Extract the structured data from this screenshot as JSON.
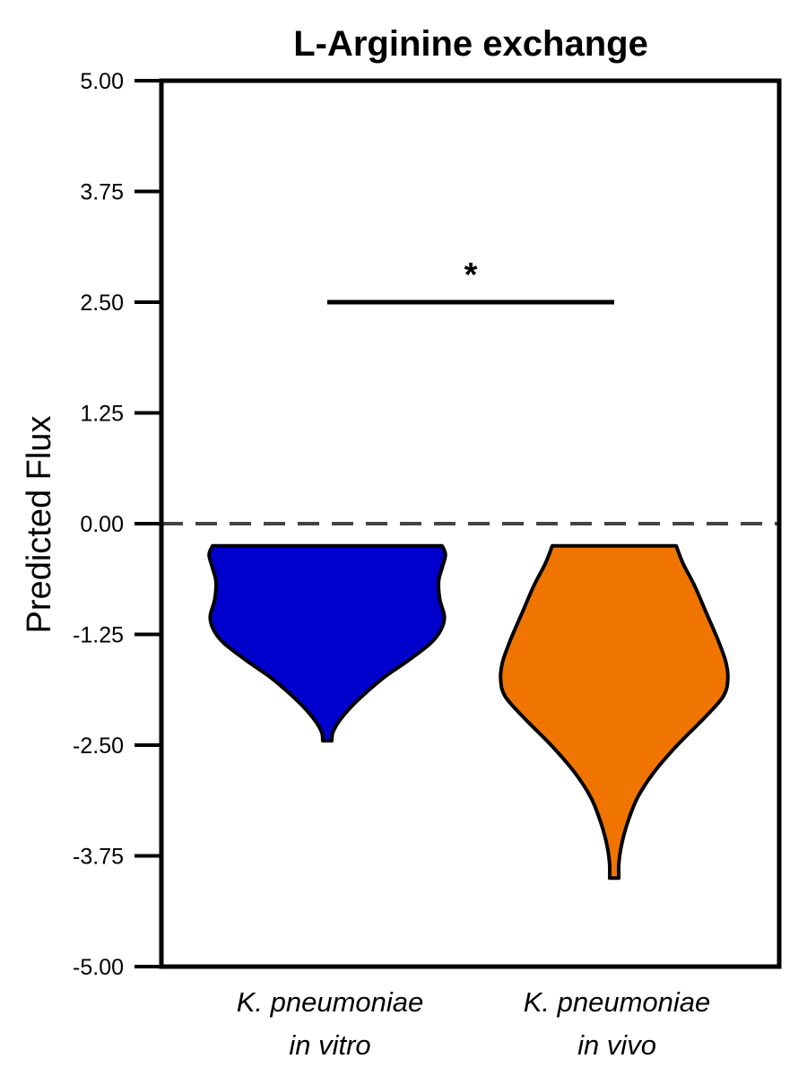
{
  "chart_data": {
    "type": "violin",
    "title": "L-Arginine exchange",
    "ylabel": "Predicted Flux",
    "ylim": [
      -5,
      5
    ],
    "yticks": [
      5,
      3.75,
      2.5,
      1.25,
      0,
      -1.25,
      -2.5,
      -3.75,
      -5
    ],
    "ytick_labels": [
      "5.00",
      "3.75",
      "2.50",
      "1.25",
      "0.00",
      "-1.25",
      "-2.50",
      "-3.75",
      "-5.00"
    ],
    "reference_line": {
      "y": 0,
      "style": "dashed",
      "color": "#444444"
    },
    "categories": [
      {
        "line1": "K. pneumoniae",
        "line2": "in vitro"
      },
      {
        "line1": "K. pneumoniae",
        "line2": "in vivo"
      }
    ],
    "series": [
      {
        "color": "#0000cc",
        "y_min": -2.45,
        "y_max": -0.25,
        "profile": [
          [
            -0.25,
            1.0
          ],
          [
            -0.35,
            1.03
          ],
          [
            -0.5,
            1.0
          ],
          [
            -0.65,
            0.97
          ],
          [
            -0.85,
            0.98
          ],
          [
            -1.05,
            1.02
          ],
          [
            -1.2,
            0.99
          ],
          [
            -1.35,
            0.9
          ],
          [
            -1.55,
            0.7
          ],
          [
            -1.75,
            0.48
          ],
          [
            -2.0,
            0.26
          ],
          [
            -2.2,
            0.12
          ],
          [
            -2.35,
            0.05
          ],
          [
            -2.45,
            0.04
          ]
        ]
      },
      {
        "color": "#f07500",
        "y_min": -4.0,
        "y_max": -0.25,
        "profile": [
          [
            -0.25,
            0.54
          ],
          [
            -0.45,
            0.6
          ],
          [
            -0.7,
            0.7
          ],
          [
            -1.0,
            0.8
          ],
          [
            -1.3,
            0.9
          ],
          [
            -1.55,
            0.97
          ],
          [
            -1.75,
            0.99
          ],
          [
            -1.95,
            0.95
          ],
          [
            -2.2,
            0.78
          ],
          [
            -2.5,
            0.55
          ],
          [
            -2.8,
            0.35
          ],
          [
            -3.1,
            0.2
          ],
          [
            -3.4,
            0.11
          ],
          [
            -3.65,
            0.06
          ],
          [
            -3.85,
            0.04
          ],
          [
            -4.0,
            0.04
          ]
        ]
      }
    ],
    "significance": {
      "y": 2.5,
      "from": 0,
      "to": 1,
      "label": "*"
    }
  }
}
